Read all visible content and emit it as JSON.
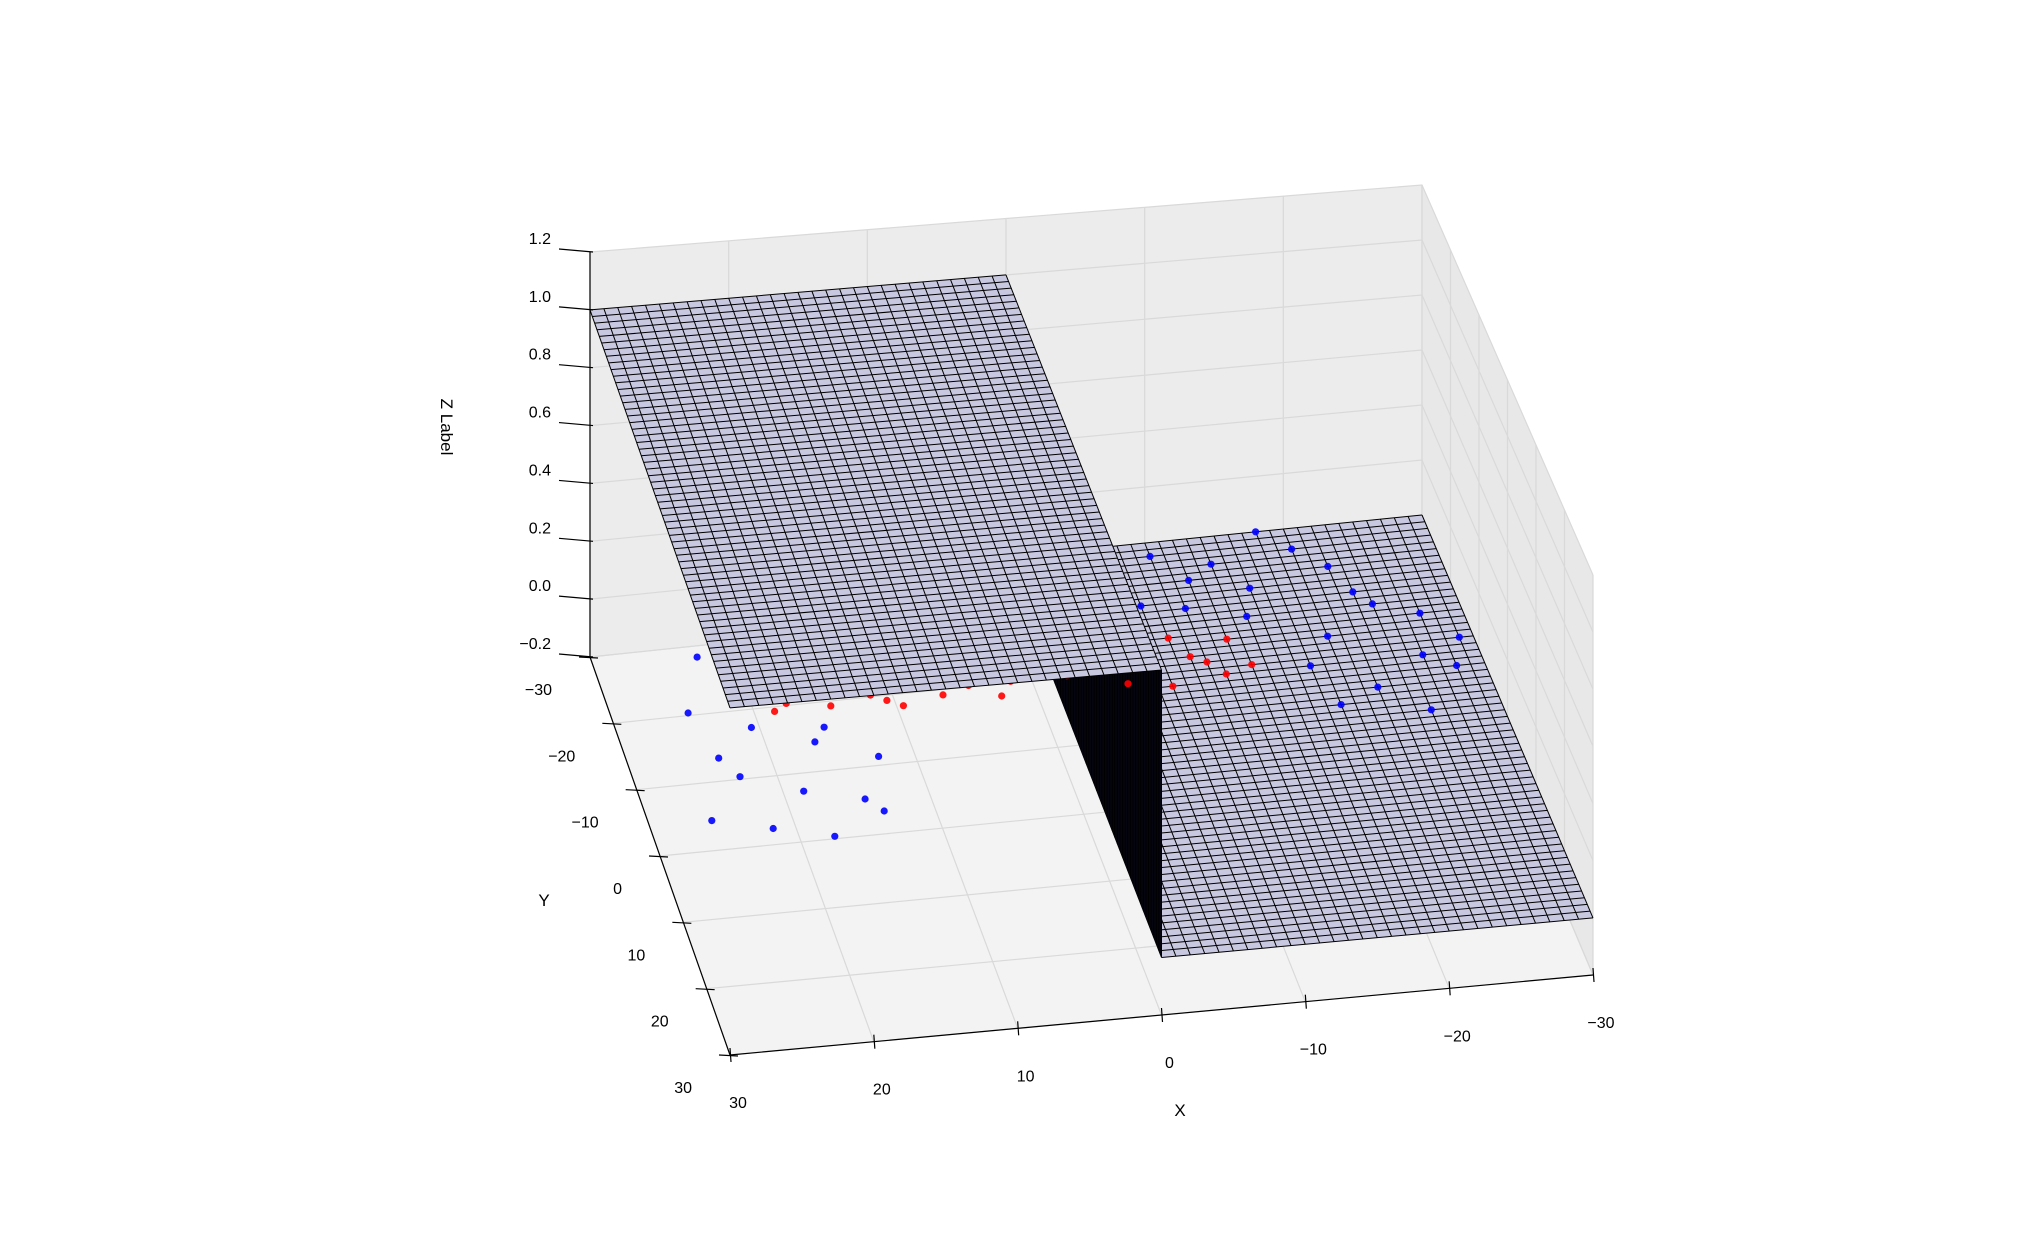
{
  "chart_data": {
    "type": "surface3d+scatter3d",
    "title": "",
    "xlabel": "X",
    "ylabel": "Y",
    "zlabel": "Z Label",
    "xlim": [
      -30,
      30
    ],
    "ylim": [
      -30,
      30
    ],
    "zlim": [
      -0.2,
      1.2
    ],
    "x_ticks": [
      "30",
      "20",
      "10",
      "0",
      "−10",
      "−20",
      "−30"
    ],
    "y_ticks": [
      "−30",
      "−20",
      "−10",
      "0",
      "10",
      "20",
      "30"
    ],
    "z_ticks": [
      "1.2",
      "1.0",
      "0.8",
      "0.6",
      "0.4",
      "0.2",
      "0.0",
      "−0.2"
    ],
    "grid": true,
    "surface": {
      "function": "step: z = 1 for x > 0, z = 0 for x < 0",
      "x_range": [
        -30,
        30
      ],
      "y_range": [
        -30,
        30
      ],
      "edgecolor": "#000000",
      "facecolor": "#c8c8e0"
    },
    "series": [
      {
        "color": "#ff0000",
        "points": [
          [
            2,
            -15,
            0
          ],
          [
            3,
            -12,
            0
          ],
          [
            4,
            -10,
            0
          ],
          [
            5,
            -13,
            0
          ],
          [
            6,
            -17,
            0
          ],
          [
            7,
            -14,
            0
          ],
          [
            8,
            -11,
            0
          ],
          [
            9,
            -16,
            0
          ],
          [
            10,
            -13,
            0
          ],
          [
            11,
            -10,
            0
          ],
          [
            12,
            -15,
            0
          ],
          [
            13,
            -12,
            0
          ],
          [
            14,
            -17,
            0
          ],
          [
            15,
            -14,
            0
          ],
          [
            16,
            -11,
            0
          ],
          [
            17,
            -13,
            0
          ],
          [
            18,
            -16,
            0
          ],
          [
            19,
            -12,
            0
          ],
          [
            20,
            -15,
            0
          ],
          [
            6,
            -12,
            0
          ],
          [
            8,
            -18,
            0
          ],
          [
            10,
            -15,
            0
          ],
          [
            12,
            -11,
            0
          ],
          [
            14,
            -13,
            0
          ],
          [
            16,
            -16,
            0
          ],
          [
            18,
            -14,
            0
          ],
          [
            20,
            -11,
            0
          ],
          [
            -1,
            -12,
            0
          ],
          [
            -3,
            -14,
            0
          ],
          [
            -5,
            -10,
            0
          ],
          [
            -7,
            -13,
            0
          ],
          [
            -9,
            -16,
            0
          ],
          [
            -11,
            -12,
            0
          ],
          [
            -13,
            -15,
            0
          ],
          [
            -14,
            -11,
            0
          ],
          [
            -4,
            -17,
            0
          ],
          [
            -8,
            -9,
            0
          ],
          [
            -10,
            -13,
            0
          ],
          [
            -12,
            -10,
            0
          ],
          [
            0,
            -14,
            0
          ]
        ]
      },
      {
        "color": "#0000ff",
        "points": [
          [
            22,
            -28,
            0
          ],
          [
            18,
            -25,
            0
          ],
          [
            14,
            -27,
            0
          ],
          [
            10,
            -24,
            0
          ],
          [
            6,
            -26,
            0
          ],
          [
            2,
            -22,
            0
          ],
          [
            24,
            -20,
            0
          ],
          [
            20,
            -18,
            0
          ],
          [
            16,
            -21,
            0
          ],
          [
            12,
            -19,
            0
          ],
          [
            8,
            -23,
            0
          ],
          [
            4,
            -20,
            0
          ],
          [
            26,
            -12,
            0
          ],
          [
            22,
            -9,
            0
          ],
          [
            18,
            -6,
            0
          ],
          [
            14,
            -3,
            0
          ],
          [
            24,
            -2,
            0
          ],
          [
            20,
            1,
            0
          ],
          [
            16,
            3,
            0
          ],
          [
            27,
            4,
            0
          ],
          [
            23,
            6,
            0
          ],
          [
            19,
            8,
            0
          ],
          [
            15,
            5,
            0
          ],
          [
            25,
            -5,
            0
          ],
          [
            21,
            -14,
            0
          ],
          [
            17,
            -8,
            0
          ],
          [
            9,
            -28,
            0
          ],
          [
            5,
            -29,
            0
          ],
          [
            1,
            -25,
            0
          ],
          [
            13,
            -16,
            0
          ],
          [
            0,
            -18,
            0
          ],
          [
            -2,
            -20,
            0
          ],
          [
            -6,
            -30,
            0
          ],
          [
            -10,
            -28,
            0
          ],
          [
            -14,
            -26,
            0
          ],
          [
            -18,
            -30,
            0
          ],
          [
            -22,
            -24,
            0
          ],
          [
            -20,
            -27,
            0
          ],
          [
            -16,
            -22,
            0
          ],
          [
            -12,
            -24,
            0
          ],
          [
            -8,
            -21,
            0
          ],
          [
            -24,
            -18,
            0
          ],
          [
            -20,
            -14,
            0
          ],
          [
            -26,
            -10,
            0
          ],
          [
            -22,
            -6,
            0
          ],
          [
            -28,
            -8,
            0
          ],
          [
            -25,
            -2,
            0
          ],
          [
            -18,
            -10,
            0
          ],
          [
            -23,
            -20,
            0
          ],
          [
            -27,
            -16,
            0
          ],
          [
            -15,
            -18,
            0
          ],
          [
            -11,
            -20,
            0
          ],
          [
            -19,
            -4,
            0
          ],
          [
            -29,
            -12,
            0
          ]
        ]
      }
    ]
  }
}
